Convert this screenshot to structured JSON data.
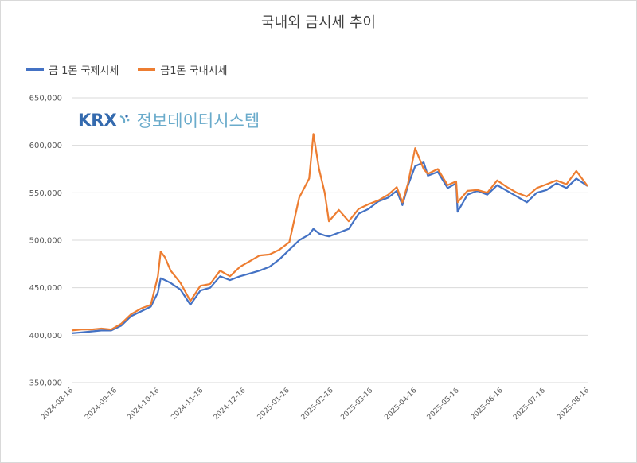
{
  "colors": {
    "intl": "#4472c4",
    "domestic": "#ed7d31",
    "grid": "#d9d9d9",
    "axis_text": "#595959",
    "watermark_logo": "#1f5aa6",
    "watermark_text": "#5aa2c6"
  },
  "watermark": {
    "logo": "KRX",
    "text": "정보데이터시스템"
  },
  "chart_data": {
    "type": "line",
    "title": "국내외 금시세 추이",
    "xlabel": "",
    "ylabel": "",
    "ylim": [
      350000,
      650000
    ],
    "yticks": [
      350000,
      400000,
      450000,
      500000,
      550000,
      600000,
      650000
    ],
    "ytick_labels": [
      "350,000",
      "400,000",
      "450,000",
      "500,000",
      "550,000",
      "600,000",
      "650,000"
    ],
    "xtick_labels": [
      "2024-08-16",
      "2024-09-16",
      "2024-10-16",
      "2024-11-16",
      "2024-12-16",
      "2025-01-16",
      "2025-02-16",
      "2025-03-16",
      "2025-04-16",
      "2025-05-16",
      "2025-06-16",
      "2025-07-16",
      "2025-08-16"
    ],
    "grid": true,
    "legend": "top-left",
    "x": [
      "2024-08-16",
      "2024-08-23",
      "2024-08-30",
      "2024-09-06",
      "2024-09-13",
      "2024-09-20",
      "2024-09-27",
      "2024-10-04",
      "2024-10-11",
      "2024-10-16",
      "2024-10-18",
      "2024-10-21",
      "2024-10-25",
      "2024-11-01",
      "2024-11-08",
      "2024-11-15",
      "2024-11-22",
      "2024-11-29",
      "2024-12-06",
      "2024-12-13",
      "2024-12-20",
      "2024-12-27",
      "2025-01-03",
      "2025-01-10",
      "2025-01-17",
      "2025-01-24",
      "2025-01-31",
      "2025-02-03",
      "2025-02-07",
      "2025-02-11",
      "2025-02-14",
      "2025-02-21",
      "2025-02-28",
      "2025-03-07",
      "2025-03-14",
      "2025-03-21",
      "2025-03-28",
      "2025-04-03",
      "2025-04-07",
      "2025-04-11",
      "2025-04-16",
      "2025-04-22",
      "2025-04-25",
      "2025-05-02",
      "2025-05-09",
      "2025-05-15",
      "2025-05-16",
      "2025-05-23",
      "2025-05-30",
      "2025-06-06",
      "2025-06-13",
      "2025-06-20",
      "2025-06-27",
      "2025-07-04",
      "2025-07-11",
      "2025-07-18",
      "2025-07-25",
      "2025-08-01",
      "2025-08-08",
      "2025-08-16"
    ],
    "series": [
      {
        "name": "금 1돈 국제시세",
        "values": [
          402000,
          403000,
          404000,
          405000,
          405000,
          410000,
          420000,
          425000,
          430000,
          445000,
          460000,
          458000,
          455000,
          448000,
          432000,
          447000,
          450000,
          462000,
          458000,
          462000,
          465000,
          468000,
          472000,
          480000,
          490000,
          500000,
          506000,
          512000,
          507000,
          505000,
          504000,
          508000,
          512000,
          528000,
          533000,
          541000,
          545000,
          552000,
          537000,
          558000,
          578000,
          582000,
          568000,
          572000,
          555000,
          560000,
          530000,
          548000,
          552000,
          548000,
          558000,
          552000,
          546000,
          540000,
          550000,
          553000,
          560000,
          555000,
          565000,
          557000
        ]
      },
      {
        "name": "금1돈 국내시세",
        "values": [
          405000,
          406000,
          406000,
          407000,
          406000,
          412000,
          422000,
          428000,
          432000,
          462000,
          488000,
          482000,
          468000,
          455000,
          436000,
          452000,
          454000,
          468000,
          462000,
          472000,
          478000,
          484000,
          485000,
          490000,
          498000,
          545000,
          565000,
          612000,
          575000,
          550000,
          520000,
          532000,
          520000,
          533000,
          538000,
          542000,
          548000,
          556000,
          540000,
          560000,
          597000,
          575000,
          570000,
          575000,
          558000,
          562000,
          540000,
          552000,
          553000,
          550000,
          563000,
          556000,
          550000,
          546000,
          555000,
          559000,
          563000,
          559000,
          573000,
          557000
        ]
      }
    ]
  }
}
